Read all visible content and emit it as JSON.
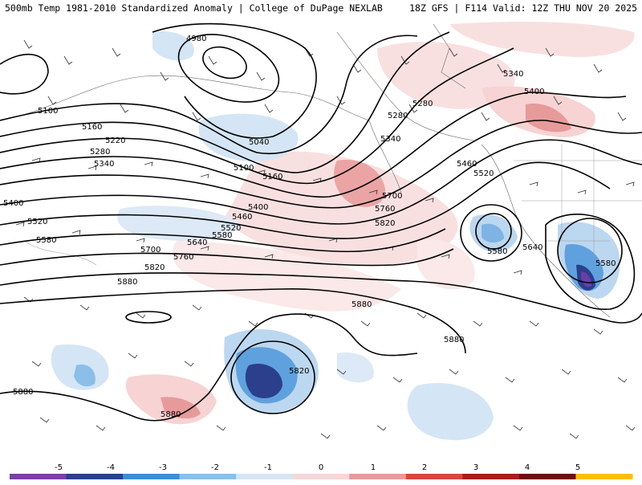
{
  "header": {
    "title_left": "500mb Temp 1981-2010 Standardized Anomaly | College of DuPage NEXLAB",
    "title_right": "18Z GFS | F114 Valid: 12Z THU NOV 20 2025"
  },
  "contour_labels": [
    "4980",
    "5040",
    "5100",
    "5100",
    "5160",
    "5160",
    "5220",
    "5280",
    "5280",
    "5280",
    "5340",
    "5340",
    "5340",
    "5400",
    "5400",
    "5400",
    "5460",
    "5460",
    "5520",
    "5520",
    "5520",
    "5580",
    "5580",
    "5580",
    "5580",
    "5640",
    "5640",
    "5700",
    "5700",
    "5760",
    "5760",
    "5820",
    "5820",
    "5820",
    "5880",
    "5880",
    "5880",
    "5880",
    "5880"
  ],
  "legend": {
    "ticks": [
      "-5",
      "-4",
      "-3",
      "-2",
      "-1",
      "0",
      "1",
      "2",
      "3",
      "4",
      "5"
    ],
    "colors": [
      "#7a3fa8",
      "#2b3f8c",
      "#3a8fd6",
      "#8bbfe8",
      "#d4e5f5",
      "#f7d7d7",
      "#e79a9a",
      "#d8453f",
      "#a81d1d",
      "#6e0d0d",
      "#ffc000"
    ]
  }
}
